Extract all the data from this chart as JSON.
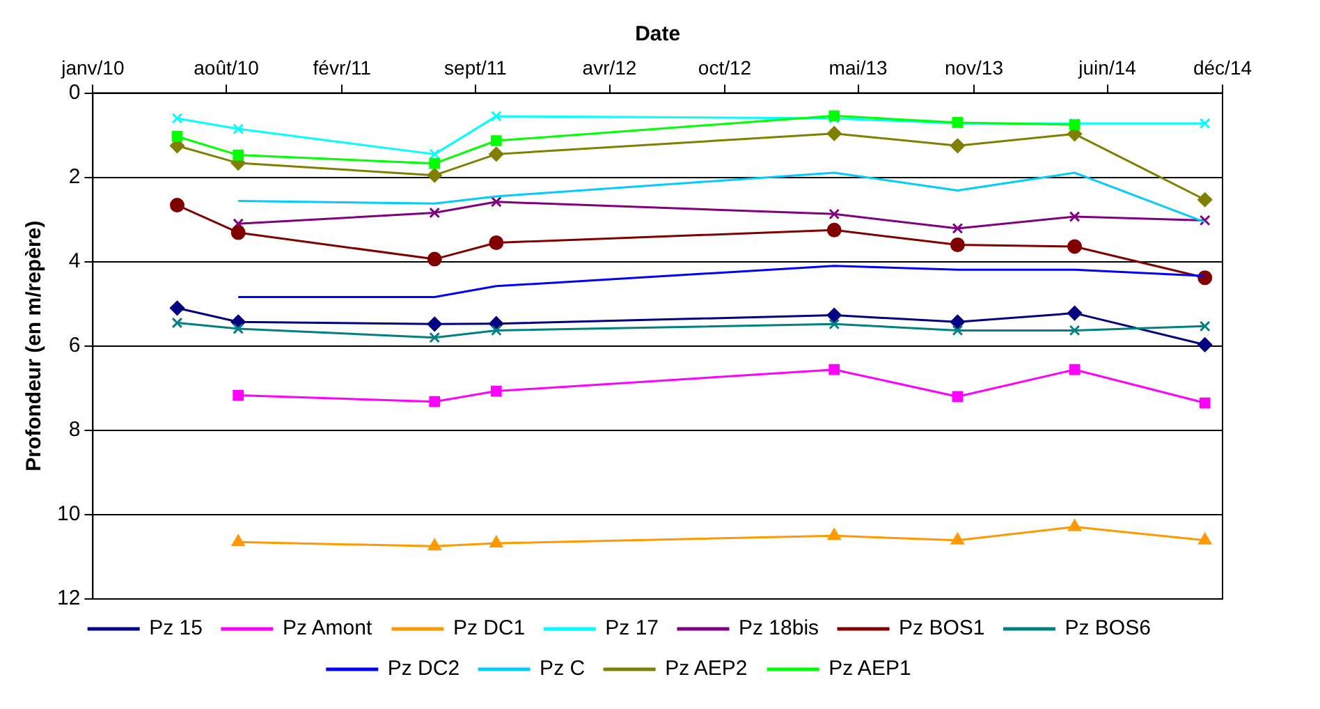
{
  "chart_data": {
    "type": "line",
    "xlabel": "Date",
    "ylabel": "Profondeur (en m/repère)",
    "x": [
      "2010-05-15",
      "2010-08-20",
      "2011-06-28",
      "2011-10-04",
      "2013-03-24",
      "2013-10-06",
      "2014-04-10",
      "2014-11-03"
    ],
    "xlim": [
      "2010-01-01",
      "2014-12-01"
    ],
    "xticks": [
      {
        "value": "2010-01-01",
        "label": "janv/10"
      },
      {
        "value": "2010-08-01",
        "label": "août/10"
      },
      {
        "value": "2011-02-01",
        "label": "févr/11"
      },
      {
        "value": "2011-09-01",
        "label": "sept/11"
      },
      {
        "value": "2012-04-01",
        "label": "avr/12"
      },
      {
        "value": "2012-10-01",
        "label": "oct/12"
      },
      {
        "value": "2013-05-01",
        "label": "mai/13"
      },
      {
        "value": "2013-11-01",
        "label": "nov/13"
      },
      {
        "value": "2014-06-01",
        "label": "juin/14"
      },
      {
        "value": "2014-12-01",
        "label": "déc/14"
      }
    ],
    "ylim": [
      12,
      0
    ],
    "yticks": [
      0,
      2,
      4,
      6,
      8,
      10,
      12
    ],
    "grid": "y",
    "legend": "bottom",
    "series": [
      {
        "name": "Pz 15",
        "color": "#000080",
        "marker": "diamond",
        "values": [
          5.1,
          5.43,
          5.48,
          5.47,
          5.27,
          5.43,
          5.22,
          5.97
        ]
      },
      {
        "name": "Pz Amont",
        "color": "#ff00ff",
        "marker": "square",
        "values": [
          null,
          7.17,
          7.32,
          7.07,
          6.56,
          7.2,
          6.56,
          7.35
        ]
      },
      {
        "name": "Pz DC1",
        "color": "#ff9900",
        "marker": "triangle",
        "values": [
          null,
          10.65,
          10.75,
          10.68,
          10.5,
          10.61,
          10.29,
          10.61
        ]
      },
      {
        "name": "Pz 17",
        "color": "#00ffff",
        "marker": "cross",
        "values": [
          0.6,
          0.85,
          1.45,
          0.55,
          0.6,
          0.72,
          0.72,
          0.72
        ]
      },
      {
        "name": "Pz 18bis",
        "color": "#800080",
        "marker": "cross",
        "values": [
          null,
          3.1,
          2.84,
          2.58,
          2.87,
          3.21,
          2.93,
          3.02
        ]
      },
      {
        "name": "Pz BOS1",
        "color": "#800000",
        "marker": "circle",
        "values": [
          2.66,
          3.31,
          3.94,
          3.55,
          3.25,
          3.6,
          3.64,
          4.38
        ]
      },
      {
        "name": "Pz BOS6",
        "color": "#008080",
        "marker": "cross",
        "values": [
          5.45,
          5.59,
          5.8,
          5.63,
          5.48,
          5.63,
          5.63,
          5.53
        ]
      },
      {
        "name": "Pz DC2",
        "color": "#0000ff",
        "marker": "none",
        "values": [
          null,
          4.84,
          4.84,
          4.58,
          4.1,
          4.19,
          4.19,
          4.34
        ]
      },
      {
        "name": "Pz C",
        "color": "#00ccff",
        "marker": "none",
        "values": [
          null,
          2.56,
          2.62,
          2.45,
          1.89,
          2.31,
          1.89,
          3.06
        ]
      },
      {
        "name": "Pz AEP2",
        "color": "#808000",
        "marker": "diamond",
        "values": [
          1.25,
          1.66,
          1.95,
          1.45,
          0.96,
          1.25,
          0.97,
          2.53
        ]
      },
      {
        "name": "Pz AEP1",
        "color": "#00ff00",
        "marker": "square",
        "values": [
          1.03,
          1.47,
          1.67,
          1.13,
          0.54,
          0.7,
          0.75,
          null
        ]
      }
    ]
  }
}
